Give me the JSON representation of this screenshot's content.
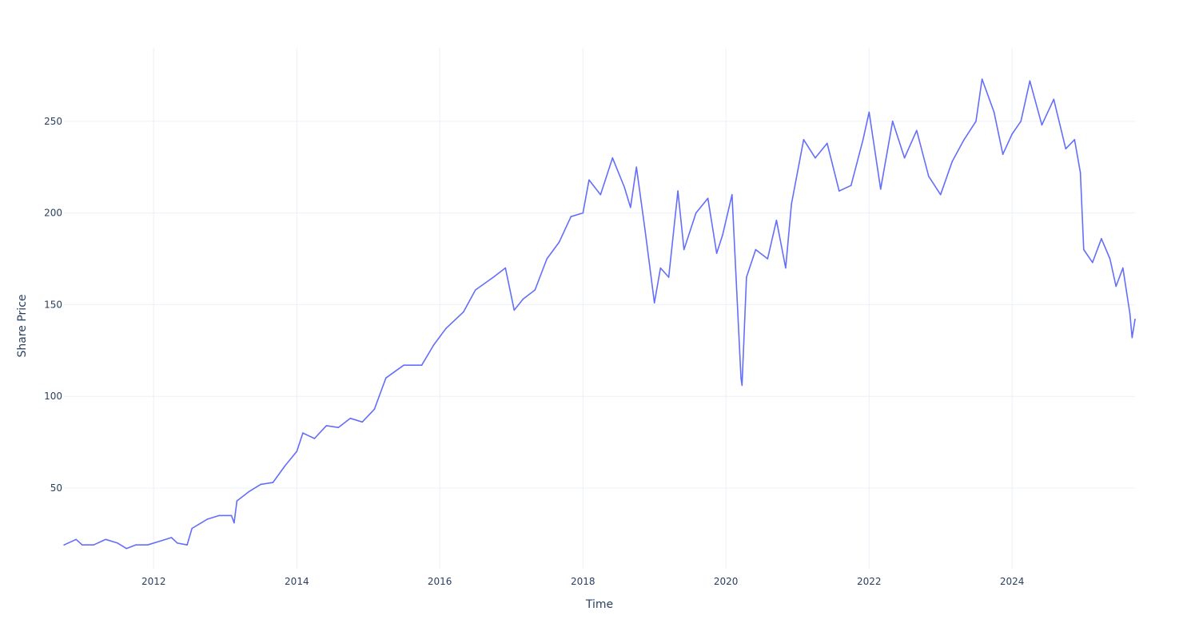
{
  "chart_data": {
    "type": "line",
    "title": "",
    "xlabel": "Time",
    "ylabel": "Share Price",
    "xlim": [
      "2010-09-30",
      "2025-09-20"
    ],
    "ylim": [
      6,
      290
    ],
    "grid": true,
    "legend": "none",
    "line_color": "#636efa",
    "grid_color": "#ebf0f8",
    "text_color": "#2a3f5f",
    "x_ticks": [
      {
        "date": "2012-01-01",
        "label": "2012"
      },
      {
        "date": "2014-01-01",
        "label": "2014"
      },
      {
        "date": "2016-01-01",
        "label": "2016"
      },
      {
        "date": "2018-01-01",
        "label": "2018"
      },
      {
        "date": "2020-01-01",
        "label": "2020"
      },
      {
        "date": "2022-01-01",
        "label": "2022"
      },
      {
        "date": "2024-01-01",
        "label": "2024"
      }
    ],
    "y_ticks": [
      {
        "value": 50,
        "label": "50"
      },
      {
        "value": 100,
        "label": "100"
      },
      {
        "value": 150,
        "label": "150"
      },
      {
        "value": 200,
        "label": "200"
      },
      {
        "value": 250,
        "label": "250"
      }
    ],
    "series": [
      {
        "points": [
          [
            "2010-10-01",
            19
          ],
          [
            "2010-12-01",
            22
          ],
          [
            "2011-01-01",
            19
          ],
          [
            "2011-03-01",
            19
          ],
          [
            "2011-05-01",
            22
          ],
          [
            "2011-07-01",
            20
          ],
          [
            "2011-08-15",
            17
          ],
          [
            "2011-10-01",
            19
          ],
          [
            "2011-12-01",
            19
          ],
          [
            "2012-02-01",
            21
          ],
          [
            "2012-04-01",
            23
          ],
          [
            "2012-05-01",
            20
          ],
          [
            "2012-06-20",
            19
          ],
          [
            "2012-07-15",
            28
          ],
          [
            "2012-10-01",
            33
          ],
          [
            "2012-12-01",
            35
          ],
          [
            "2013-02-01",
            35
          ],
          [
            "2013-02-15",
            31
          ],
          [
            "2013-03-01",
            43
          ],
          [
            "2013-05-01",
            48
          ],
          [
            "2013-07-01",
            52
          ],
          [
            "2013-09-01",
            53
          ],
          [
            "2013-11-01",
            62
          ],
          [
            "2014-01-01",
            70
          ],
          [
            "2014-02-01",
            80
          ],
          [
            "2014-04-01",
            77
          ],
          [
            "2014-06-01",
            84
          ],
          [
            "2014-08-01",
            83
          ],
          [
            "2014-10-01",
            88
          ],
          [
            "2014-12-01",
            86
          ],
          [
            "2015-02-01",
            93
          ],
          [
            "2015-04-01",
            110
          ],
          [
            "2015-07-01",
            117
          ],
          [
            "2015-10-01",
            117
          ],
          [
            "2015-12-01",
            128
          ],
          [
            "2016-02-01",
            137
          ],
          [
            "2016-05-01",
            146
          ],
          [
            "2016-07-01",
            158
          ],
          [
            "2016-10-01",
            165
          ],
          [
            "2016-12-01",
            170
          ],
          [
            "2017-01-15",
            147
          ],
          [
            "2017-03-01",
            153
          ],
          [
            "2017-05-01",
            158
          ],
          [
            "2017-07-01",
            175
          ],
          [
            "2017-09-01",
            184
          ],
          [
            "2017-11-01",
            198
          ],
          [
            "2018-01-01",
            200
          ],
          [
            "2018-02-01",
            218
          ],
          [
            "2018-04-01",
            210
          ],
          [
            "2018-06-01",
            230
          ],
          [
            "2018-08-01",
            214
          ],
          [
            "2018-09-01",
            203
          ],
          [
            "2018-10-01",
            225
          ],
          [
            "2018-11-15",
            190
          ],
          [
            "2019-01-01",
            151
          ],
          [
            "2019-02-01",
            170
          ],
          [
            "2019-03-15",
            165
          ],
          [
            "2019-05-01",
            212
          ],
          [
            "2019-06-01",
            180
          ],
          [
            "2019-08-01",
            200
          ],
          [
            "2019-10-01",
            208
          ],
          [
            "2019-11-15",
            178
          ],
          [
            "2019-12-15",
            188
          ],
          [
            "2020-02-01",
            210
          ],
          [
            "2020-03-18",
            110
          ],
          [
            "2020-03-23",
            106
          ],
          [
            "2020-04-15",
            165
          ],
          [
            "2020-06-01",
            180
          ],
          [
            "2020-08-01",
            175
          ],
          [
            "2020-09-15",
            196
          ],
          [
            "2020-11-01",
            170
          ],
          [
            "2020-12-01",
            205
          ],
          [
            "2021-02-01",
            240
          ],
          [
            "2021-04-01",
            230
          ],
          [
            "2021-06-01",
            238
          ],
          [
            "2021-08-01",
            212
          ],
          [
            "2021-10-01",
            215
          ],
          [
            "2021-12-01",
            240
          ],
          [
            "2022-01-01",
            255
          ],
          [
            "2022-03-01",
            213
          ],
          [
            "2022-05-01",
            250
          ],
          [
            "2022-07-01",
            230
          ],
          [
            "2022-09-01",
            245
          ],
          [
            "2022-11-01",
            220
          ],
          [
            "2023-01-01",
            210
          ],
          [
            "2023-03-01",
            228
          ],
          [
            "2023-05-01",
            240
          ],
          [
            "2023-07-01",
            250
          ],
          [
            "2023-08-01",
            273
          ],
          [
            "2023-10-01",
            255
          ],
          [
            "2023-11-15",
            232
          ],
          [
            "2024-01-01",
            243
          ],
          [
            "2024-02-15",
            250
          ],
          [
            "2024-04-01",
            272
          ],
          [
            "2024-06-01",
            248
          ],
          [
            "2024-08-01",
            262
          ],
          [
            "2024-10-01",
            235
          ],
          [
            "2024-11-15",
            240
          ],
          [
            "2024-12-15",
            222
          ],
          [
            "2025-01-01",
            180
          ],
          [
            "2025-02-15",
            173
          ],
          [
            "2025-04-01",
            186
          ],
          [
            "2025-05-15",
            175
          ],
          [
            "2025-06-15",
            160
          ],
          [
            "2025-07-20",
            170
          ],
          [
            "2025-08-25",
            145
          ],
          [
            "2025-09-05",
            132
          ],
          [
            "2025-09-20",
            142
          ]
        ]
      }
    ]
  }
}
